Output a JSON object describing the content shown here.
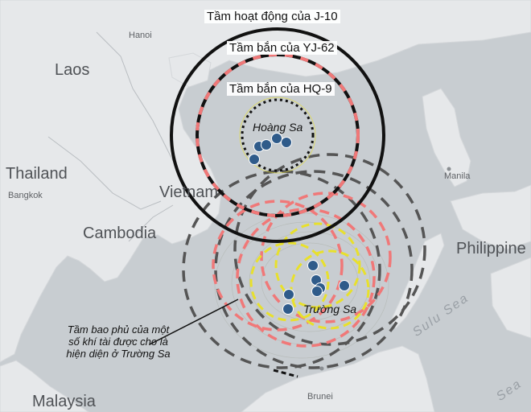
{
  "countries": {
    "laos": "Laos",
    "thailand": "Thailand",
    "cambodia": "Cambodia",
    "vietnam": "Vietnam",
    "philippines": "Philippine",
    "malaysia": "Malaysia"
  },
  "cities": {
    "hanoi": "Hanoi",
    "bangkok": "Bangkok",
    "manila": "Manila",
    "brunei": "Brunei"
  },
  "seas": {
    "sulu": "Sulu Sea",
    "sulu_fragment": "Sea"
  },
  "ranges": {
    "j10": "Tầm hoạt động của J-10",
    "yj62": "Tầm bắn của YJ-62",
    "hq9": "Tầm bắn của HQ-9"
  },
  "archipelagos": {
    "paracel": "Hoàng Sa",
    "spratly": "Trường Sa"
  },
  "annotation": "Tầm bao phủ của một số khí tài được cho là hiện diện ở Trường Sa",
  "colors": {
    "water": "#c8cdd1",
    "land": "#e6e8ea",
    "j10_ring": "#111111",
    "yj62_ring": "#f07878",
    "hq9_ring": "#e8e02c",
    "coverage_ring": "#555555",
    "island_marker": "#2f5b8a"
  }
}
